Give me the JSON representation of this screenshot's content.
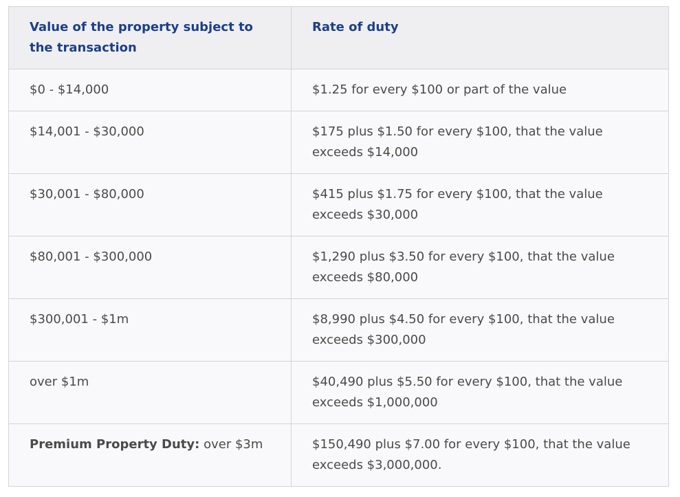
{
  "table": {
    "headers": [
      "Value of the property subject to the transaction",
      "Rate of duty"
    ],
    "rows": [
      {
        "value": "$0 - $14,000",
        "rate": "$1.25 for every $100 or part of the value"
      },
      {
        "value": "$14,001 - $30,000",
        "rate": "$175 plus $1.50 for every $100, that the value exceeds $14,000"
      },
      {
        "value": "$30,001 - $80,000",
        "rate": "$415 plus $1.75 for every $100, that the value exceeds $30,000"
      },
      {
        "value": "$80,001 - $300,000",
        "rate": "$1,290 plus $3.50 for every $100, that the value exceeds $80,000"
      },
      {
        "value": "$300,001 - $1m",
        "rate": "$8,990 plus $4.50 for every $100, that the value exceeds $300,000"
      },
      {
        "value": "over $1m",
        "rate": "$40,490 plus $5.50 for every $100, that the value exceeds $1,000,000"
      },
      {
        "value_label": "Premium Property Duty:",
        "value": "over $3m",
        "rate": "$150,490 plus $7.00 for every $100, that the value exceeds $3,000,000."
      }
    ]
  }
}
